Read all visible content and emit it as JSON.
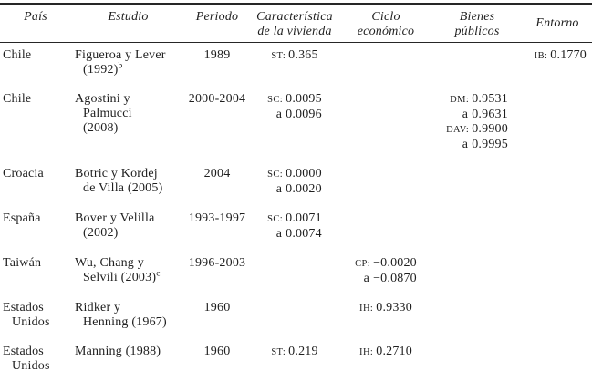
{
  "page": {
    "background_color": "#ffffff",
    "text_color": "#1f1f1f",
    "rule_color": "#262626"
  },
  "header": {
    "pais": "País",
    "estudio": "Estudio",
    "periodo": "Periodo",
    "caracteristica_line1": "Característica",
    "caracteristica_line2": "de la vivienda",
    "ciclo_line1": "Ciclo",
    "ciclo_line2": "económico",
    "bienes_line1": "Bienes",
    "bienes_line2": "públicos",
    "entorno": "Entorno"
  },
  "rows": [
    {
      "pais1": "Chile",
      "estudio1": "Figueroa y Lever",
      "estudio2": "(1992)",
      "estudio2_sup": "b",
      "periodo": "1989",
      "car1_label": "ST:",
      "car1_value": "0.365",
      "ent1_label": "IB:",
      "ent1_value": "0.1770"
    },
    {
      "pais1": "Chile",
      "estudio1": "Agostini y",
      "estudio2": "Palmucci",
      "estudio3": "(2008)",
      "periodo": "2000-2004",
      "car1_label": "SC:",
      "car1_value": "0.0095",
      "car2_prefix": "a",
      "car2_value": "0.0096",
      "bie1_label": "DM:",
      "bie1_value": "0.9531",
      "bie2_prefix": "a",
      "bie2_value": "0.9631",
      "bie3_label": "DAV:",
      "bie3_value": "0.9900",
      "bie4_prefix": "a",
      "bie4_value": "0.9995"
    },
    {
      "pais1": "Croacia",
      "estudio1": "Botric y Kordej",
      "estudio2": "de Villa (2005)",
      "periodo": "2004",
      "car1_label": "SC:",
      "car1_value": "0.0000",
      "car2_prefix": "a",
      "car2_value": "0.0020"
    },
    {
      "pais1": "España",
      "estudio1": "Bover y Velilla",
      "estudio2": "(2002)",
      "periodo": "1993-1997",
      "car1_label": "SC:",
      "car1_value": "0.0071",
      "car2_prefix": "a",
      "car2_value": "0.0074"
    },
    {
      "pais1": "Taiwán",
      "estudio1": "Wu, Chang y",
      "estudio2": "Selvili (2003)",
      "estudio2_sup": "c",
      "periodo": "1996-2003",
      "cic1_label": "CP:",
      "cic1_value": "−0.0020",
      "cic2_prefix": "a",
      "cic2_value": "−0.0870"
    },
    {
      "pais1": "Estados",
      "pais2": "Unidos",
      "estudio1": "Ridker y",
      "estudio2": "Henning (1967)",
      "periodo": "1960",
      "cic1_label": "IH:",
      "cic1_value": "0.9330"
    },
    {
      "pais1": "Estados",
      "pais2": "Unidos",
      "estudio1": "Manning (1988)",
      "periodo": "1960",
      "car1_label": "ST:",
      "car1_value": "0.219",
      "cic1_label": "IH:",
      "cic1_value": "0.2710"
    }
  ]
}
